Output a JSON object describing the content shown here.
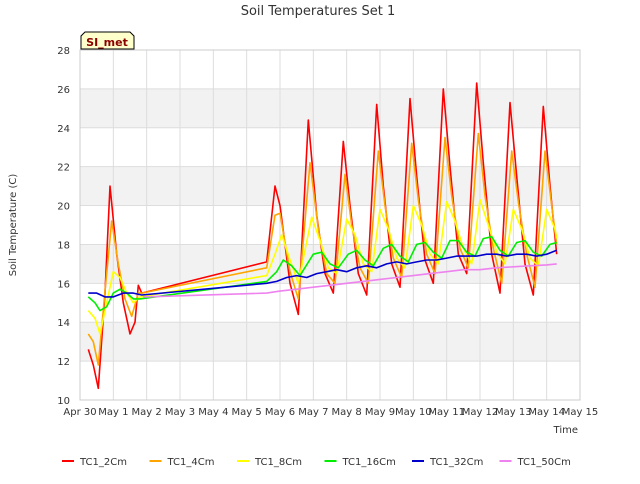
{
  "chart_data": {
    "type": "line",
    "title": "Soil Temperatures Set 1",
    "xlabel": "Time",
    "ylabel": "Soil Temperature (C)",
    "ylim": [
      10,
      28
    ],
    "xlim": [
      0,
      15
    ],
    "yticks": [
      10,
      12,
      14,
      16,
      18,
      20,
      22,
      24,
      26,
      28
    ],
    "xticks": [
      {
        "x": 0,
        "label": "Apr 30"
      },
      {
        "x": 1,
        "label": "May 1"
      },
      {
        "x": 2,
        "label": "May 2"
      },
      {
        "x": 3,
        "label": "May 3"
      },
      {
        "x": 4,
        "label": "May 4"
      },
      {
        "x": 5,
        "label": "May 5"
      },
      {
        "x": 6,
        "label": "May 6"
      },
      {
        "x": 7,
        "label": "May 7"
      },
      {
        "x": 8,
        "label": "May 8"
      },
      {
        "x": 9,
        "label": "May 9"
      },
      {
        "x": 10,
        "label": "May 10"
      },
      {
        "x": 11,
        "label": "May 11"
      },
      {
        "x": 12,
        "label": "May 12"
      },
      {
        "x": 13,
        "label": "May 13"
      },
      {
        "x": 14,
        "label": "May 14"
      },
      {
        "x": 15,
        "label": "May 15"
      }
    ],
    "annotation": "SI_met",
    "grid": true,
    "legend_position": "bottom",
    "series": [
      {
        "name": "TC1_2Cm",
        "color": "#ff0000",
        "points": [
          [
            0.25,
            12.6
          ],
          [
            0.4,
            11.8
          ],
          [
            0.55,
            10.6
          ],
          [
            0.75,
            15.5
          ],
          [
            0.9,
            21.0
          ],
          [
            1.1,
            17.5
          ],
          [
            1.3,
            15.0
          ],
          [
            1.5,
            13.4
          ],
          [
            1.65,
            14.0
          ],
          [
            1.75,
            15.9
          ],
          [
            1.85,
            15.5
          ],
          [
            5.6,
            17.1
          ],
          [
            5.85,
            21.0
          ],
          [
            6.0,
            20.0
          ],
          [
            6.3,
            16.0
          ],
          [
            6.55,
            14.4
          ],
          [
            6.85,
            24.4
          ],
          [
            7.1,
            19.5
          ],
          [
            7.35,
            16.5
          ],
          [
            7.6,
            15.5
          ],
          [
            7.9,
            23.3
          ],
          [
            8.1,
            20.0
          ],
          [
            8.35,
            16.5
          ],
          [
            8.6,
            15.4
          ],
          [
            8.9,
            25.2
          ],
          [
            9.1,
            21.0
          ],
          [
            9.35,
            17.0
          ],
          [
            9.6,
            15.8
          ],
          [
            9.9,
            25.5
          ],
          [
            10.1,
            21.5
          ],
          [
            10.35,
            17.2
          ],
          [
            10.6,
            16.0
          ],
          [
            10.9,
            26.0
          ],
          [
            11.1,
            22.0
          ],
          [
            11.35,
            17.5
          ],
          [
            11.6,
            16.5
          ],
          [
            11.9,
            26.3
          ],
          [
            12.1,
            22.2
          ],
          [
            12.35,
            17.5
          ],
          [
            12.6,
            15.5
          ],
          [
            12.9,
            25.3
          ],
          [
            13.1,
            21.5
          ],
          [
            13.35,
            17.0
          ],
          [
            13.6,
            15.4
          ],
          [
            13.9,
            25.1
          ],
          [
            14.1,
            21.0
          ],
          [
            14.3,
            17.5
          ]
        ]
      },
      {
        "name": "TC1_4Cm",
        "color": "#ffa500",
        "points": [
          [
            0.25,
            13.4
          ],
          [
            0.4,
            13.0
          ],
          [
            0.55,
            11.8
          ],
          [
            0.75,
            15.6
          ],
          [
            0.95,
            19.2
          ],
          [
            1.15,
            17.0
          ],
          [
            1.35,
            15.2
          ],
          [
            1.55,
            14.3
          ],
          [
            1.75,
            15.5
          ],
          [
            1.85,
            15.5
          ],
          [
            5.6,
            16.8
          ],
          [
            5.85,
            19.5
          ],
          [
            6.0,
            19.6
          ],
          [
            6.3,
            16.6
          ],
          [
            6.55,
            15.2
          ],
          [
            6.9,
            22.2
          ],
          [
            7.15,
            18.8
          ],
          [
            7.4,
            16.5
          ],
          [
            7.65,
            16.0
          ],
          [
            7.95,
            21.6
          ],
          [
            8.15,
            19.0
          ],
          [
            8.4,
            16.8
          ],
          [
            8.65,
            16.0
          ],
          [
            8.95,
            22.8
          ],
          [
            9.15,
            20.0
          ],
          [
            9.4,
            17.3
          ],
          [
            9.65,
            16.3
          ],
          [
            9.95,
            23.2
          ],
          [
            10.15,
            20.3
          ],
          [
            10.4,
            17.5
          ],
          [
            10.65,
            16.5
          ],
          [
            10.95,
            23.5
          ],
          [
            11.15,
            20.5
          ],
          [
            11.4,
            17.8
          ],
          [
            11.65,
            16.8
          ],
          [
            11.95,
            23.7
          ],
          [
            12.15,
            20.5
          ],
          [
            12.4,
            17.8
          ],
          [
            12.65,
            16.0
          ],
          [
            12.95,
            22.8
          ],
          [
            13.15,
            20.2
          ],
          [
            13.4,
            17.5
          ],
          [
            13.65,
            15.8
          ],
          [
            13.95,
            22.8
          ],
          [
            14.15,
            20.0
          ],
          [
            14.3,
            18.0
          ]
        ]
      },
      {
        "name": "TC1_8Cm",
        "color": "#ffff00",
        "points": [
          [
            0.25,
            14.6
          ],
          [
            0.45,
            14.2
          ],
          [
            0.6,
            13.4
          ],
          [
            0.8,
            15.0
          ],
          [
            1.0,
            16.6
          ],
          [
            1.2,
            16.3
          ],
          [
            1.4,
            15.5
          ],
          [
            1.6,
            15.0
          ],
          [
            1.8,
            15.3
          ],
          [
            5.6,
            16.4
          ],
          [
            5.85,
            17.5
          ],
          [
            6.05,
            18.5
          ],
          [
            6.3,
            17.2
          ],
          [
            6.55,
            16.0
          ],
          [
            6.95,
            19.4
          ],
          [
            7.2,
            18.2
          ],
          [
            7.45,
            16.8
          ],
          [
            7.7,
            16.5
          ],
          [
            8.0,
            19.3
          ],
          [
            8.25,
            18.5
          ],
          [
            8.5,
            17.0
          ],
          [
            8.75,
            16.6
          ],
          [
            9.0,
            19.8
          ],
          [
            9.25,
            18.8
          ],
          [
            9.5,
            17.3
          ],
          [
            9.75,
            16.8
          ],
          [
            10.0,
            20.0
          ],
          [
            10.25,
            19.0
          ],
          [
            10.5,
            17.5
          ],
          [
            10.75,
            17.0
          ],
          [
            11.0,
            20.2
          ],
          [
            11.25,
            19.2
          ],
          [
            11.5,
            17.8
          ],
          [
            11.75,
            17.0
          ],
          [
            12.0,
            20.3
          ],
          [
            12.25,
            19.0
          ],
          [
            12.5,
            17.6
          ],
          [
            12.75,
            17.0
          ],
          [
            13.0,
            19.8
          ],
          [
            13.25,
            18.8
          ],
          [
            13.5,
            17.3
          ],
          [
            13.75,
            16.9
          ],
          [
            14.0,
            19.8
          ],
          [
            14.25,
            18.8
          ],
          [
            14.3,
            18.3
          ]
        ]
      },
      {
        "name": "TC1_16Cm",
        "color": "#00ee00",
        "points": [
          [
            0.25,
            15.3
          ],
          [
            0.45,
            15.0
          ],
          [
            0.6,
            14.6
          ],
          [
            0.8,
            14.8
          ],
          [
            1.0,
            15.5
          ],
          [
            1.2,
            15.7
          ],
          [
            1.4,
            15.5
          ],
          [
            1.6,
            15.2
          ],
          [
            1.8,
            15.2
          ],
          [
            5.6,
            16.1
          ],
          [
            5.9,
            16.6
          ],
          [
            6.1,
            17.2
          ],
          [
            6.35,
            16.9
          ],
          [
            6.6,
            16.4
          ],
          [
            7.0,
            17.5
          ],
          [
            7.25,
            17.6
          ],
          [
            7.5,
            17.0
          ],
          [
            7.75,
            16.8
          ],
          [
            8.05,
            17.5
          ],
          [
            8.3,
            17.7
          ],
          [
            8.55,
            17.2
          ],
          [
            8.8,
            16.9
          ],
          [
            9.1,
            17.8
          ],
          [
            9.35,
            18.0
          ],
          [
            9.6,
            17.4
          ],
          [
            9.85,
            17.1
          ],
          [
            10.1,
            18.0
          ],
          [
            10.35,
            18.1
          ],
          [
            10.6,
            17.6
          ],
          [
            10.85,
            17.3
          ],
          [
            11.1,
            18.2
          ],
          [
            11.35,
            18.2
          ],
          [
            11.6,
            17.6
          ],
          [
            11.85,
            17.4
          ],
          [
            12.1,
            18.3
          ],
          [
            12.35,
            18.4
          ],
          [
            12.6,
            17.7
          ],
          [
            12.85,
            17.4
          ],
          [
            13.1,
            18.1
          ],
          [
            13.35,
            18.2
          ],
          [
            13.6,
            17.6
          ],
          [
            13.85,
            17.4
          ],
          [
            14.1,
            18.0
          ],
          [
            14.3,
            18.1
          ]
        ]
      },
      {
        "name": "TC1_32Cm",
        "color": "#0000cc",
        "points": [
          [
            0.25,
            15.5
          ],
          [
            0.5,
            15.5
          ],
          [
            0.75,
            15.3
          ],
          [
            1.0,
            15.3
          ],
          [
            1.3,
            15.5
          ],
          [
            1.6,
            15.5
          ],
          [
            1.85,
            15.4
          ],
          [
            5.6,
            16.0
          ],
          [
            5.9,
            16.1
          ],
          [
            6.2,
            16.3
          ],
          [
            6.5,
            16.4
          ],
          [
            6.8,
            16.3
          ],
          [
            7.1,
            16.5
          ],
          [
            7.4,
            16.6
          ],
          [
            7.7,
            16.7
          ],
          [
            8.0,
            16.6
          ],
          [
            8.3,
            16.8
          ],
          [
            8.6,
            16.9
          ],
          [
            8.9,
            16.8
          ],
          [
            9.2,
            17.0
          ],
          [
            9.5,
            17.1
          ],
          [
            9.8,
            17.0
          ],
          [
            10.1,
            17.1
          ],
          [
            10.4,
            17.2
          ],
          [
            10.7,
            17.2
          ],
          [
            11.0,
            17.3
          ],
          [
            11.3,
            17.4
          ],
          [
            11.6,
            17.4
          ],
          [
            11.9,
            17.4
          ],
          [
            12.2,
            17.5
          ],
          [
            12.5,
            17.5
          ],
          [
            12.8,
            17.4
          ],
          [
            13.1,
            17.5
          ],
          [
            13.4,
            17.5
          ],
          [
            13.7,
            17.4
          ],
          [
            14.0,
            17.5
          ],
          [
            14.3,
            17.7
          ]
        ]
      },
      {
        "name": "TC1_50Cm",
        "color": "#ee82ee",
        "points": [
          [
            1.9,
            15.3
          ],
          [
            5.6,
            15.5
          ],
          [
            6.0,
            15.6
          ],
          [
            6.5,
            15.7
          ],
          [
            7.0,
            15.8
          ],
          [
            7.5,
            15.9
          ],
          [
            8.0,
            16.0
          ],
          [
            8.5,
            16.1
          ],
          [
            9.0,
            16.2
          ],
          [
            9.5,
            16.3
          ],
          [
            10.0,
            16.4
          ],
          [
            10.5,
            16.5
          ],
          [
            11.0,
            16.6
          ],
          [
            11.5,
            16.7
          ],
          [
            12.0,
            16.7
          ],
          [
            12.5,
            16.8
          ],
          [
            13.0,
            16.85
          ],
          [
            13.5,
            16.9
          ],
          [
            14.0,
            16.95
          ],
          [
            14.3,
            17.0
          ]
        ]
      }
    ]
  }
}
